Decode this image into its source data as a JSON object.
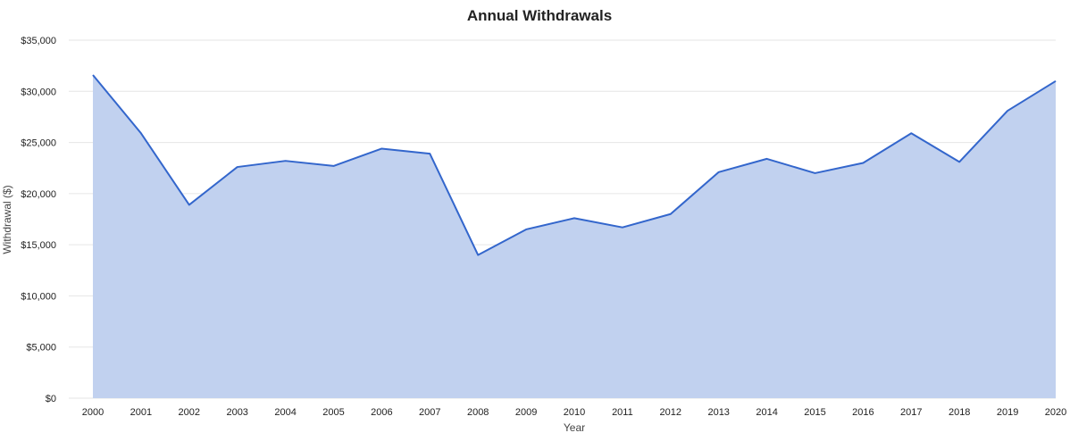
{
  "chart_data": {
    "type": "area",
    "title": "Annual Withdrawals",
    "xlabel": "Year",
    "ylabel": "Withdrawal ($)",
    "ylim": [
      0,
      35000
    ],
    "ytick_values": [
      0,
      5000,
      10000,
      15000,
      20000,
      25000,
      30000,
      35000
    ],
    "ytick_labels": [
      "$0",
      "$5,000",
      "$10,000",
      "$15,000",
      "$20,000",
      "$25,000",
      "$30,000",
      "$35,000"
    ],
    "categories": [
      "2000",
      "2001",
      "2002",
      "2003",
      "2004",
      "2005",
      "2006",
      "2007",
      "2008",
      "2009",
      "2010",
      "2011",
      "2012",
      "2013",
      "2014",
      "2015",
      "2016",
      "2017",
      "2018",
      "2019",
      "2020"
    ],
    "series": [
      {
        "values": [
          31600,
          25900,
          18900,
          22600,
          23200,
          22700,
          24400,
          23900,
          14000,
          16500,
          17600,
          16700,
          18000,
          22100,
          23400,
          22000,
          23000,
          25900,
          23100,
          28100,
          31000
        ]
      }
    ],
    "grid": true,
    "legend": "none",
    "colors": {
      "line": "#3366cc",
      "fill": "#c1d1ef",
      "grid": "#e6e6e6"
    }
  }
}
